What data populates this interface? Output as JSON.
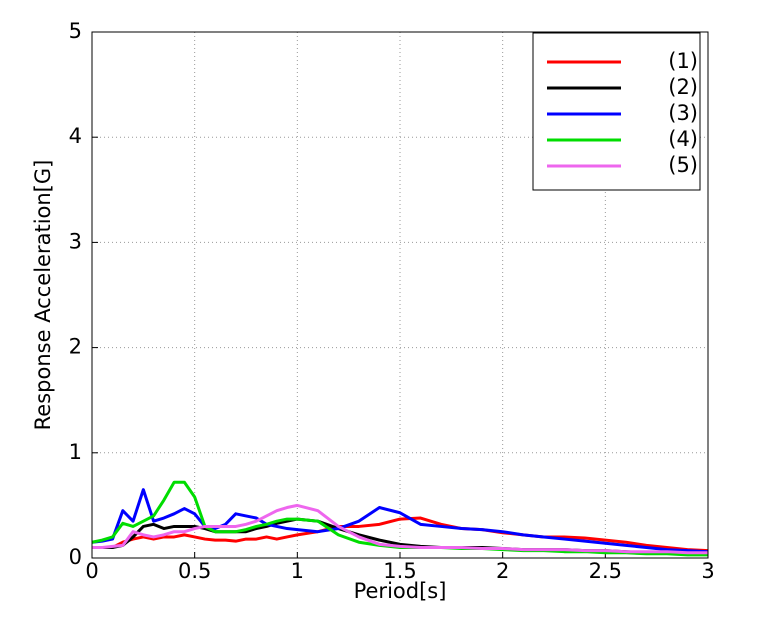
{
  "chart_data": {
    "type": "line",
    "xlabel": "Period[s]",
    "ylabel": "Response Acceleration[G]",
    "x": [
      0,
      0.05,
      0.1,
      0.15,
      0.2,
      0.25,
      0.3,
      0.35,
      0.4,
      0.45,
      0.5,
      0.55,
      0.6,
      0.65,
      0.7,
      0.75,
      0.8,
      0.85,
      0.9,
      0.95,
      1.0,
      1.1,
      1.2,
      1.3,
      1.4,
      1.5,
      1.6,
      1.7,
      1.8,
      1.9,
      2.0,
      2.1,
      2.2,
      2.3,
      2.4,
      2.5,
      2.6,
      2.7,
      2.8,
      2.9,
      3.0
    ],
    "series": [
      {
        "name": "(1)",
        "color": "#ff0000",
        "values": [
          0.1,
          0.1,
          0.1,
          0.15,
          0.18,
          0.2,
          0.18,
          0.2,
          0.2,
          0.22,
          0.2,
          0.18,
          0.17,
          0.17,
          0.16,
          0.18,
          0.18,
          0.2,
          0.18,
          0.2,
          0.22,
          0.25,
          0.3,
          0.3,
          0.32,
          0.37,
          0.38,
          0.32,
          0.28,
          0.27,
          0.24,
          0.22,
          0.2,
          0.2,
          0.19,
          0.17,
          0.15,
          0.12,
          0.1,
          0.08,
          0.07
        ]
      },
      {
        "name": "(2)",
        "color": "#000000",
        "values": [
          0.1,
          0.1,
          0.1,
          0.12,
          0.2,
          0.3,
          0.32,
          0.28,
          0.3,
          0.3,
          0.3,
          0.28,
          0.25,
          0.25,
          0.25,
          0.25,
          0.28,
          0.3,
          0.33,
          0.35,
          0.37,
          0.35,
          0.28,
          0.22,
          0.17,
          0.13,
          0.11,
          0.1,
          0.1,
          0.1,
          0.09,
          0.08,
          0.08,
          0.08,
          0.07,
          0.07,
          0.06,
          0.05,
          0.05,
          0.04,
          0.04
        ]
      },
      {
        "name": "(3)",
        "color": "#0000ff",
        "values": [
          0.15,
          0.16,
          0.18,
          0.45,
          0.35,
          0.65,
          0.35,
          0.38,
          0.42,
          0.47,
          0.42,
          0.3,
          0.28,
          0.32,
          0.42,
          0.4,
          0.38,
          0.32,
          0.3,
          0.28,
          0.27,
          0.25,
          0.28,
          0.35,
          0.48,
          0.43,
          0.32,
          0.3,
          0.28,
          0.27,
          0.25,
          0.22,
          0.2,
          0.18,
          0.16,
          0.14,
          0.12,
          0.1,
          0.08,
          0.07,
          0.06
        ]
      },
      {
        "name": "(4)",
        "color": "#00dd00",
        "values": [
          0.15,
          0.17,
          0.2,
          0.33,
          0.3,
          0.35,
          0.4,
          0.55,
          0.72,
          0.72,
          0.58,
          0.3,
          0.25,
          0.25,
          0.25,
          0.27,
          0.3,
          0.32,
          0.35,
          0.37,
          0.37,
          0.35,
          0.22,
          0.15,
          0.12,
          0.1,
          0.1,
          0.1,
          0.09,
          0.09,
          0.08,
          0.07,
          0.07,
          0.06,
          0.06,
          0.05,
          0.05,
          0.04,
          0.04,
          0.03,
          0.03
        ]
      },
      {
        "name": "(5)",
        "color": "#ee66ee",
        "values": [
          0.1,
          0.1,
          0.11,
          0.12,
          0.25,
          0.22,
          0.2,
          0.22,
          0.25,
          0.25,
          0.28,
          0.3,
          0.3,
          0.3,
          0.3,
          0.32,
          0.35,
          0.4,
          0.45,
          0.48,
          0.5,
          0.45,
          0.3,
          0.2,
          0.13,
          0.11,
          0.1,
          0.1,
          0.1,
          0.09,
          0.09,
          0.08,
          0.08,
          0.08,
          0.07,
          0.07,
          0.06,
          0.06,
          0.06,
          0.05,
          0.05
        ]
      }
    ],
    "xlim": [
      0,
      3
    ],
    "xticks": [
      0,
      0.5,
      1,
      1.5,
      2,
      2.5,
      3
    ],
    "ylim": [
      0,
      5
    ],
    "yticks": [
      0,
      1,
      2,
      3,
      4,
      5
    ],
    "grid": true,
    "legend": "upper right"
  }
}
